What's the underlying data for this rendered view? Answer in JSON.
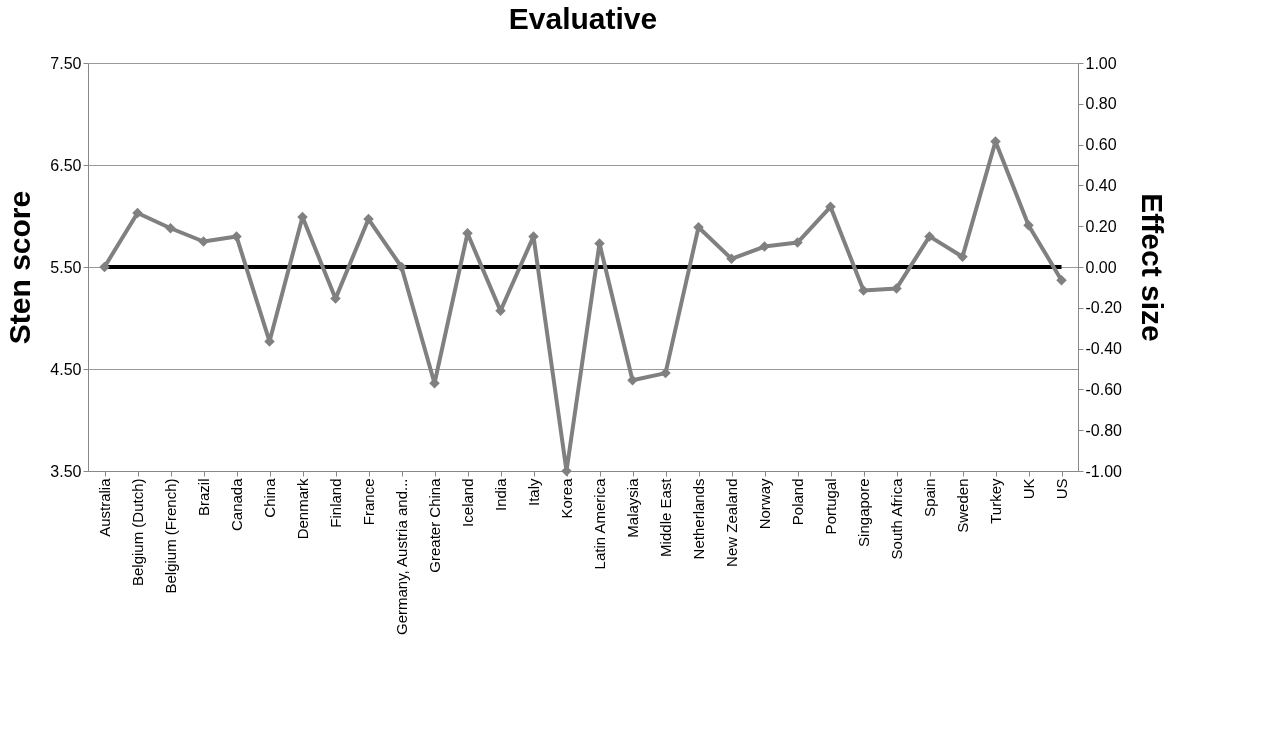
{
  "chart_data": {
    "type": "line",
    "title": "Evaluative",
    "ylabel": "Sten score",
    "y2label": "Effect size",
    "categories": [
      "Australia",
      "Belgium (Dutch)",
      "Belgium (French)",
      "Brazil",
      "Canada",
      "China",
      "Denmark",
      "Finland",
      "France",
      "Germany, Austria and...",
      "Greater China",
      "Iceland",
      "India",
      "Italy",
      "Korea",
      "Latin America",
      "Malaysia",
      "Middle East",
      "Netherlands",
      "New Zealand",
      "Norway",
      "Poland",
      "Portugal",
      "Singapore",
      "South Africa",
      "Spain",
      "Sweden",
      "Turkey",
      "UK",
      "US"
    ],
    "series": [
      {
        "color": "#808080",
        "values": [
          5.5,
          6.03,
          5.88,
          5.75,
          5.8,
          4.77,
          5.99,
          5.19,
          5.97,
          5.5,
          4.36,
          5.83,
          5.07,
          5.8,
          3.5,
          5.73,
          4.39,
          4.46,
          5.89,
          5.58,
          5.7,
          5.74,
          6.09,
          5.27,
          5.29,
          5.8,
          5.6,
          6.73,
          5.91,
          5.37
        ]
      }
    ],
    "ylim": [
      3.5,
      7.5
    ],
    "yticks": [
      {
        "value": 3.5,
        "label": "3.50"
      },
      {
        "value": 4.5,
        "label": "4.50"
      },
      {
        "value": 5.5,
        "label": "5.50"
      },
      {
        "value": 6.5,
        "label": "6.50"
      },
      {
        "value": 7.5,
        "label": "7.50"
      }
    ],
    "y2lim": [
      -1,
      1
    ],
    "y2ticks": [
      {
        "value": -1,
        "label": "-1.00"
      },
      {
        "value": -0.8,
        "label": "-0.80"
      },
      {
        "value": -0.6,
        "label": "-0.60"
      },
      {
        "value": -0.4,
        "label": "-0.40"
      },
      {
        "value": -0.2,
        "label": "-0.20"
      },
      {
        "value": 0,
        "label": "0.00"
      },
      {
        "value": 0.2,
        "label": "0.20"
      },
      {
        "value": 0.4,
        "label": "0.40"
      },
      {
        "value": 0.6,
        "label": "0.60"
      },
      {
        "value": 0.8,
        "label": "0.80"
      },
      {
        "value": 1,
        "label": "1.00"
      }
    ],
    "ref_lines": [
      {
        "axis": "y2",
        "value": 0,
        "color": "#000000"
      }
    ],
    "grid": "y",
    "marker": "diamond",
    "line_style": "solid"
  }
}
